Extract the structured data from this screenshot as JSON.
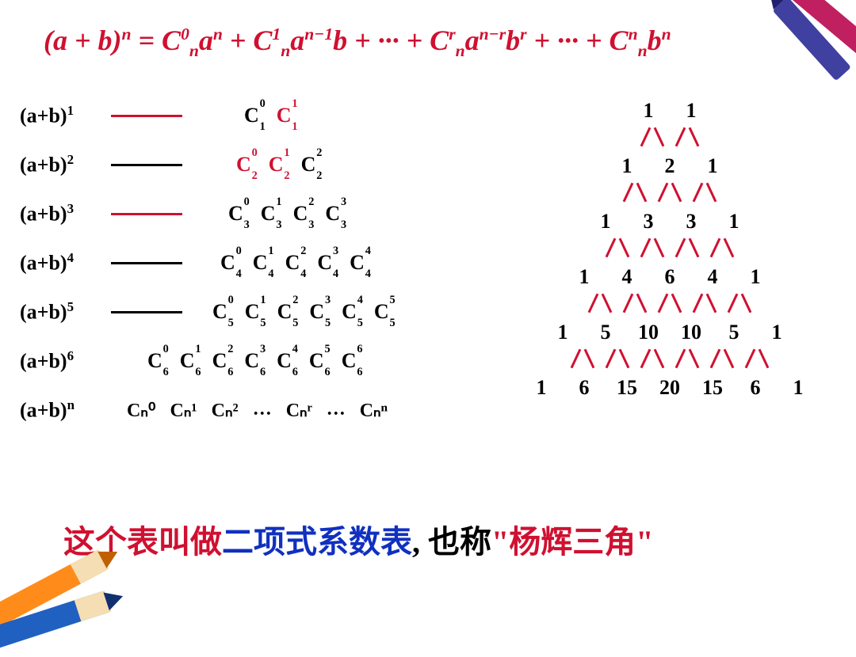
{
  "formula_html": "(<i>a</i> + <i>b</i>)<sup>n</sup> = C<sup>0</sup><sub>n</sub>a<sup>n</sup> + C<sup>1</sup><sub>n</sub>a<sup>n−1</sup>b + ··· + C<sup>r</sup><sub>n</sub>a<sup>n−r</sup>b<sup>r</sup> + ··· + C<sup>n</sup><sub>n</sub>b<sup>n</sup>",
  "rows": [
    {
      "label": "(a+b)",
      "exp": "1",
      "line": "red",
      "coeffs": [
        {
          "n": "1",
          "k": "0"
        },
        {
          "n": "1",
          "k": "1",
          "red": true
        }
      ]
    },
    {
      "label": "(a+b)",
      "exp": "2",
      "line": "blk",
      "coeffs": [
        {
          "n": "2",
          "k": "0",
          "red": true
        },
        {
          "n": "2",
          "k": "1",
          "red": true
        },
        {
          "n": "2",
          "k": "2"
        }
      ]
    },
    {
      "label": "(a+b)",
      "exp": "3",
      "line": "red",
      "coeffs": [
        {
          "n": "3",
          "k": "0"
        },
        {
          "n": "3",
          "k": "1"
        },
        {
          "n": "3",
          "k": "2"
        },
        {
          "n": "3",
          "k": "3"
        }
      ]
    },
    {
      "label": "(a+b)",
      "exp": "4",
      "line": "blk",
      "coeffs": [
        {
          "n": "4",
          "k": "0"
        },
        {
          "n": "4",
          "k": "1"
        },
        {
          "n": "4",
          "k": "2"
        },
        {
          "n": "4",
          "k": "3"
        },
        {
          "n": "4",
          "k": "4"
        }
      ]
    },
    {
      "label": "(a+b)",
      "exp": "5",
      "line": "blk",
      "coeffs": [
        {
          "n": "5",
          "k": "0"
        },
        {
          "n": "5",
          "k": "1"
        },
        {
          "n": "5",
          "k": "2"
        },
        {
          "n": "5",
          "k": "3"
        },
        {
          "n": "5",
          "k": "4"
        },
        {
          "n": "5",
          "k": "5"
        }
      ]
    },
    {
      "label": "(a+b)",
      "exp": "6",
      "line": "",
      "coeffs": [
        {
          "n": "6",
          "k": "0"
        },
        {
          "n": "6",
          "k": "1"
        },
        {
          "n": "6",
          "k": "2"
        },
        {
          "n": "6",
          "k": "3"
        },
        {
          "n": "6",
          "k": "4"
        },
        {
          "n": "6",
          "k": "5"
        },
        {
          "n": "6",
          "k": "6"
        }
      ]
    }
  ],
  "row_n": {
    "label": "(a+b)",
    "exp": "n",
    "items": [
      "Cₙ⁰",
      "Cₙ¹",
      "Cₙ²",
      "…",
      "Cₙʳ",
      "…",
      "Cₙⁿ"
    ]
  },
  "triangle": [
    [
      "1",
      "1"
    ],
    [
      "1",
      "2",
      "1"
    ],
    [
      "1",
      "3",
      "3",
      "1"
    ],
    [
      "1",
      "4",
      "6",
      "4",
      "1"
    ],
    [
      "1",
      "5",
      "10",
      "10",
      "5",
      "1"
    ],
    [
      "1",
      "6",
      "15",
      "20",
      "15",
      "6",
      "1"
    ]
  ],
  "caption": {
    "p1": "这个表叫做",
    "p2": "二项式系数表",
    "p3": ", 也称",
    "p4": "\"杨辉三角\""
  },
  "colors": {
    "red": "#d01030",
    "blue": "#1030c0",
    "black": "#000000"
  }
}
